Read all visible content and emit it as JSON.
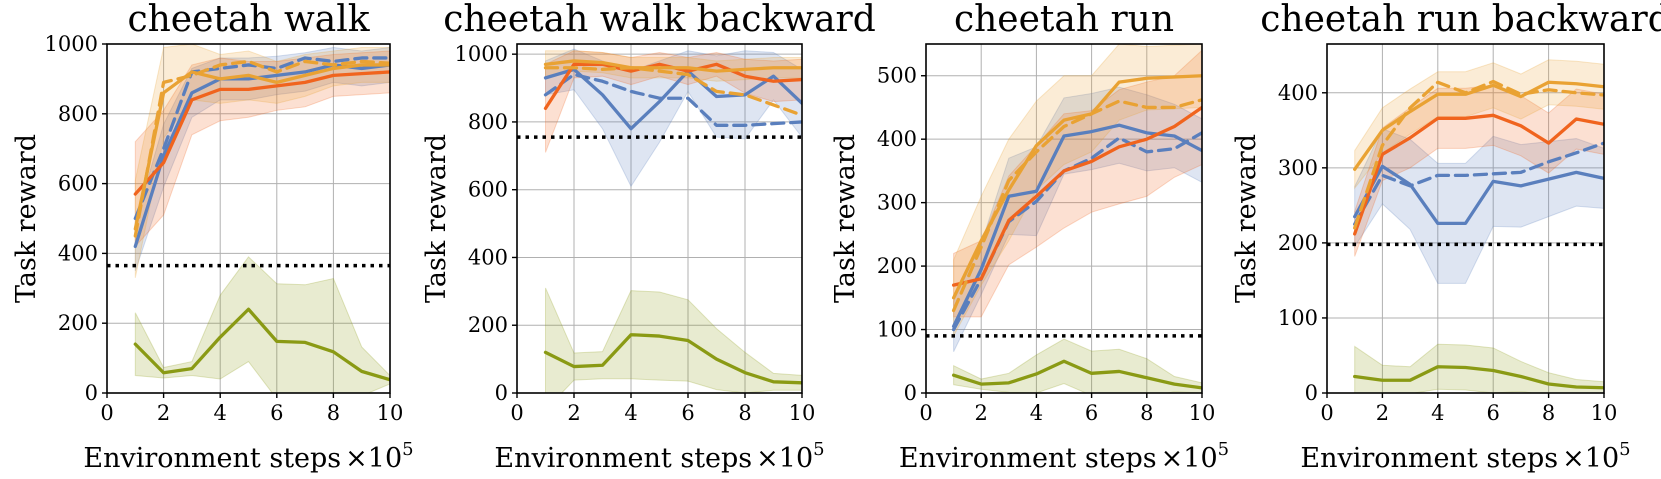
{
  "colors": {
    "blue": "#5a7fbd",
    "orange": "#f0641e",
    "gold": "#e9a233",
    "olive": "#8a9a14",
    "baseline": "#000000"
  },
  "chart_data": [
    {
      "type": "line",
      "title": "cheetah walk",
      "xlabel": "Environment steps",
      "xlabel_suffix": "×10",
      "xlabel_exp": "5",
      "ylabel": "Task reward",
      "xlim": [
        0,
        10
      ],
      "ylim": [
        0,
        1000
      ],
      "xticks": [
        0,
        2,
        4,
        6,
        8,
        10
      ],
      "yticks": [
        0,
        200,
        400,
        600,
        800,
        1000
      ],
      "grid": true,
      "baseline": 365,
      "x": [
        1,
        2,
        3,
        4,
        5,
        6,
        7,
        8,
        9,
        10
      ],
      "series": [
        {
          "name": "blue-solid",
          "color": "blue",
          "dash": false,
          "band": true,
          "values": [
            420,
            680,
            860,
            900,
            900,
            910,
            920,
            940,
            930,
            940
          ],
          "spread": [
            70,
            90,
            70,
            60,
            60,
            55,
            55,
            50,
            50,
            50
          ]
        },
        {
          "name": "blue-dashed",
          "color": "blue",
          "dash": true,
          "band": false,
          "values": [
            500,
            700,
            920,
            930,
            940,
            930,
            960,
            950,
            960,
            960
          ],
          "spread": [
            0,
            0,
            0,
            0,
            0,
            0,
            0,
            0,
            0,
            0
          ]
        },
        {
          "name": "orange-solid",
          "color": "orange",
          "dash": false,
          "band": true,
          "values": [
            570,
            660,
            840,
            870,
            870,
            880,
            890,
            910,
            915,
            920
          ],
          "spread": [
            150,
            150,
            100,
            90,
            80,
            70,
            70,
            60,
            60,
            60
          ]
        },
        {
          "name": "gold-solid",
          "color": "gold",
          "dash": false,
          "band": true,
          "values": [
            470,
            860,
            920,
            900,
            910,
            890,
            910,
            930,
            940,
            940
          ],
          "spread": [
            140,
            130,
            80,
            70,
            70,
            60,
            60,
            50,
            50,
            50
          ]
        },
        {
          "name": "gold-dashed",
          "color": "gold",
          "dash": true,
          "band": false,
          "values": [
            450,
            890,
            910,
            940,
            950,
            920,
            950,
            940,
            950,
            945
          ],
          "spread": [
            0,
            0,
            0,
            0,
            0,
            0,
            0,
            0,
            0,
            0
          ]
        },
        {
          "name": "olive-solid",
          "color": "olive",
          "dash": false,
          "band": true,
          "values": [
            140,
            58,
            70,
            160,
            240,
            148,
            145,
            118,
            62,
            38
          ],
          "spread": [
            90,
            15,
            20,
            120,
            150,
            165,
            165,
            210,
            70,
            12
          ]
        }
      ]
    },
    {
      "type": "line",
      "title": "cheetah walk backward",
      "xlabel": "Environment steps",
      "xlabel_suffix": "×10",
      "xlabel_exp": "5",
      "ylabel": "Task reward",
      "xlim": [
        0,
        10
      ],
      "ylim": [
        0,
        1030
      ],
      "xticks": [
        0,
        2,
        4,
        6,
        8,
        10
      ],
      "yticks": [
        0,
        200,
        400,
        600,
        800,
        1000
      ],
      "grid": true,
      "baseline": 755,
      "x": [
        1,
        2,
        3,
        4,
        5,
        6,
        7,
        8,
        9,
        10
      ],
      "series": [
        {
          "name": "blue-solid",
          "color": "blue",
          "dash": false,
          "band": true,
          "values": [
            930,
            955,
            880,
            780,
            860,
            950,
            875,
            880,
            935,
            855
          ],
          "spread": [
            50,
            60,
            100,
            170,
            120,
            60,
            120,
            130,
            70,
            100
          ]
        },
        {
          "name": "blue-dashed",
          "color": "blue",
          "dash": true,
          "band": false,
          "values": [
            880,
            940,
            920,
            890,
            870,
            870,
            790,
            790,
            795,
            800
          ],
          "spread": [
            0,
            0,
            0,
            0,
            0,
            0,
            0,
            0,
            0,
            0
          ]
        },
        {
          "name": "orange-solid",
          "color": "orange",
          "dash": false,
          "band": true,
          "values": [
            840,
            970,
            970,
            950,
            970,
            950,
            970,
            935,
            920,
            925
          ],
          "spread": [
            130,
            40,
            35,
            40,
            35,
            40,
            35,
            50,
            60,
            60
          ]
        },
        {
          "name": "gold-solid",
          "color": "gold",
          "dash": false,
          "band": true,
          "values": [
            970,
            980,
            975,
            960,
            960,
            960,
            950,
            955,
            960,
            960
          ],
          "spread": [
            40,
            30,
            30,
            30,
            30,
            30,
            30,
            30,
            30,
            30
          ]
        },
        {
          "name": "gold-dashed",
          "color": "gold",
          "dash": true,
          "band": false,
          "values": [
            960,
            960,
            955,
            960,
            950,
            940,
            890,
            880,
            850,
            820
          ],
          "spread": [
            0,
            0,
            0,
            0,
            0,
            0,
            0,
            0,
            0,
            0
          ]
        },
        {
          "name": "olive-solid",
          "color": "olive",
          "dash": false,
          "band": true,
          "values": [
            120,
            78,
            82,
            172,
            168,
            155,
            100,
            60,
            33,
            30
          ],
          "spread": [
            190,
            40,
            40,
            130,
            130,
            120,
            90,
            60,
            25,
            22
          ]
        }
      ]
    },
    {
      "type": "line",
      "title": "cheetah run",
      "xlabel": "Environment steps",
      "xlabel_suffix": "×10",
      "xlabel_exp": "5",
      "ylabel": "Task reward",
      "xlim": [
        0,
        10
      ],
      "ylim": [
        0,
        550
      ],
      "xticks": [
        0,
        2,
        4,
        6,
        8,
        10
      ],
      "yticks": [
        0,
        100,
        200,
        300,
        400,
        500
      ],
      "grid": true,
      "baseline": 90,
      "x": [
        1,
        2,
        3,
        4,
        5,
        6,
        7,
        8,
        9,
        10
      ],
      "series": [
        {
          "name": "blue-solid",
          "color": "blue",
          "dash": false,
          "band": true,
          "values": [
            105,
            195,
            310,
            318,
            405,
            412,
            422,
            410,
            405,
            382
          ],
          "spread": [
            40,
            40,
            60,
            70,
            60,
            60,
            60,
            60,
            50,
            50
          ]
        },
        {
          "name": "blue-dashed",
          "color": "blue",
          "dash": true,
          "band": false,
          "values": [
            100,
            180,
            270,
            302,
            350,
            370,
            402,
            380,
            385,
            410
          ],
          "spread": [
            0,
            0,
            0,
            0,
            0,
            0,
            0,
            0,
            0,
            0
          ]
        },
        {
          "name": "orange-solid",
          "color": "orange",
          "dash": false,
          "band": true,
          "values": [
            170,
            180,
            272,
            310,
            350,
            365,
            388,
            400,
            420,
            450
          ],
          "spread": [
            50,
            60,
            70,
            80,
            90,
            80,
            90,
            90,
            80,
            90
          ]
        },
        {
          "name": "gold-solid",
          "color": "gold",
          "dash": false,
          "band": true,
          "values": [
            150,
            240,
            320,
            390,
            430,
            440,
            490,
            496,
            498,
            500
          ],
          "spread": [
            60,
            70,
            80,
            70,
            70,
            60,
            60,
            50,
            50,
            50
          ]
        },
        {
          "name": "gold-dashed",
          "color": "gold",
          "dash": true,
          "band": false,
          "values": [
            130,
            230,
            335,
            380,
            420,
            440,
            460,
            450,
            450,
            462
          ],
          "spread": [
            0,
            0,
            0,
            0,
            0,
            0,
            0,
            0,
            0,
            0
          ]
        },
        {
          "name": "olive-solid",
          "color": "olive",
          "dash": false,
          "band": true,
          "values": [
            28,
            14,
            16,
            30,
            50,
            31,
            34,
            24,
            14,
            8
          ],
          "spread": [
            15,
            8,
            15,
            30,
            35,
            35,
            35,
            30,
            12,
            8
          ]
        }
      ]
    },
    {
      "type": "line",
      "title": "cheetah run backward",
      "xlabel": "Environment steps",
      "xlabel_suffix": "×10",
      "xlabel_exp": "5",
      "ylabel": "Task reward",
      "xlim": [
        0,
        10
      ],
      "ylim": [
        0,
        465
      ],
      "xticks": [
        0,
        2,
        4,
        6,
        8,
        10
      ],
      "yticks": [
        0,
        100,
        200,
        300,
        400
      ],
      "grid": true,
      "baseline": 198,
      "x": [
        1,
        2,
        3,
        4,
        5,
        6,
        7,
        8,
        9,
        10
      ],
      "series": [
        {
          "name": "blue-solid",
          "color": "blue",
          "dash": false,
          "band": true,
          "values": [
            235,
            302,
            278,
            226,
            226,
            282,
            276,
            285,
            294,
            286
          ],
          "spread": [
            40,
            50,
            60,
            80,
            80,
            60,
            55,
            50,
            45,
            40
          ]
        },
        {
          "name": "blue-dashed",
          "color": "blue",
          "dash": true,
          "band": false,
          "values": [
            225,
            290,
            276,
            290,
            290,
            292,
            294,
            308,
            320,
            333
          ],
          "spread": [
            0,
            0,
            0,
            0,
            0,
            0,
            0,
            0,
            0,
            0
          ]
        },
        {
          "name": "orange-solid",
          "color": "orange",
          "dash": false,
          "band": true,
          "values": [
            212,
            318,
            340,
            366,
            366,
            370,
            356,
            333,
            365,
            358
          ],
          "spread": [
            30,
            35,
            40,
            40,
            40,
            40,
            40,
            40,
            40,
            40
          ]
        },
        {
          "name": "gold-solid",
          "color": "gold",
          "dash": false,
          "band": true,
          "values": [
            298,
            350,
            375,
            398,
            398,
            410,
            395,
            414,
            412,
            408
          ],
          "spread": [
            25,
            30,
            30,
            30,
            30,
            30,
            30,
            30,
            30,
            30
          ]
        },
        {
          "name": "gold-dashed",
          "color": "gold",
          "dash": true,
          "band": false,
          "values": [
            220,
            330,
            380,
            414,
            400,
            415,
            398,
            404,
            400,
            397
          ],
          "spread": [
            0,
            0,
            0,
            0,
            0,
            0,
            0,
            0,
            0,
            0
          ]
        },
        {
          "name": "olive-solid",
          "color": "olive",
          "dash": false,
          "band": true,
          "values": [
            22,
            17,
            17,
            35,
            34,
            30,
            22,
            12,
            8,
            7
          ],
          "spread": [
            40,
            20,
            18,
            30,
            30,
            30,
            20,
            15,
            10,
            8
          ]
        }
      ]
    }
  ]
}
